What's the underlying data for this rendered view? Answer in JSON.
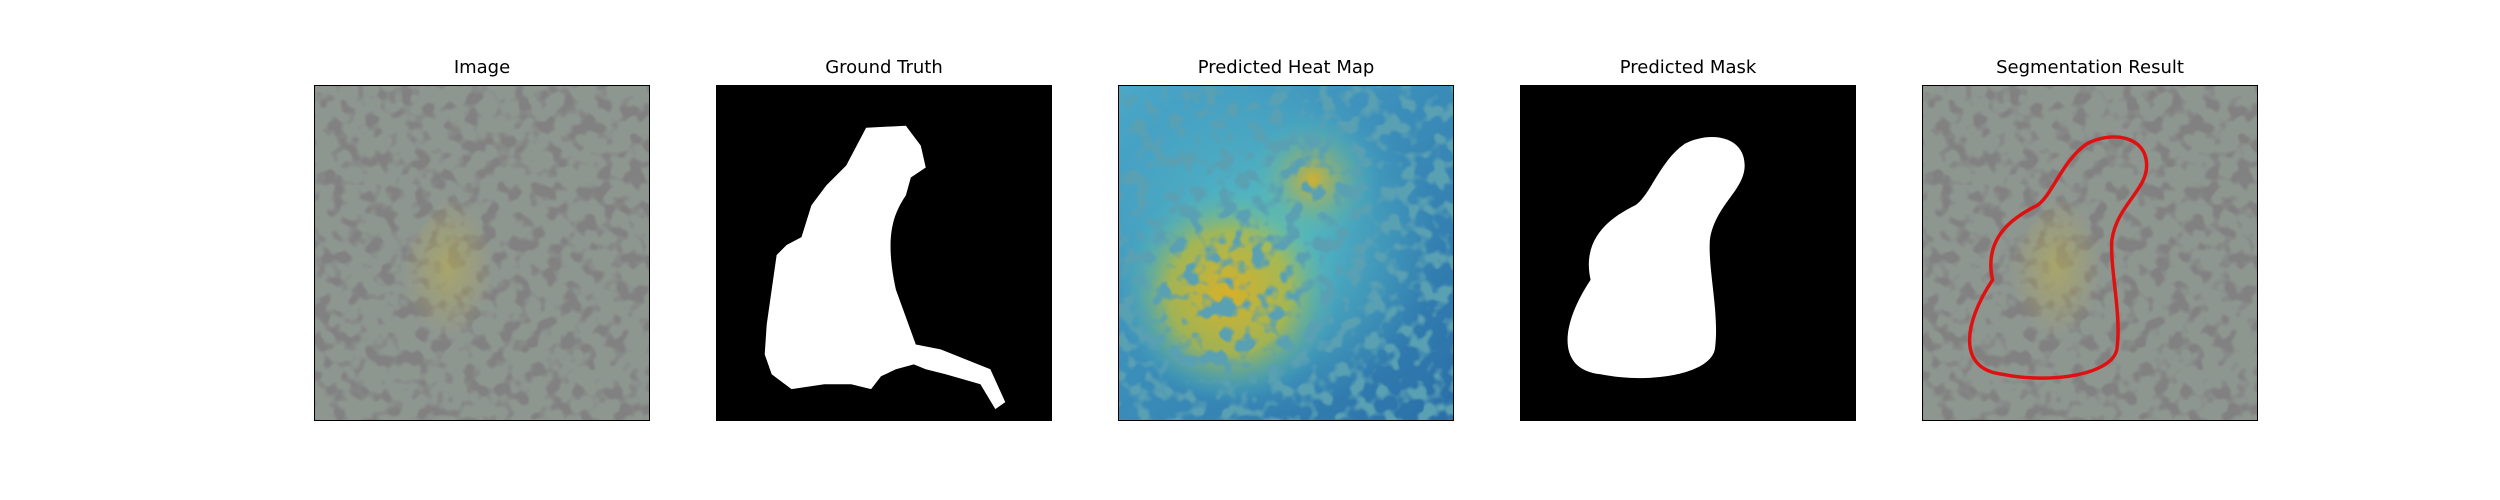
{
  "figure": {
    "panels": [
      {
        "id": "image",
        "title": "Image"
      },
      {
        "id": "ground-truth",
        "title": "Ground Truth"
      },
      {
        "id": "heatmap",
        "title": "Predicted Heat Map"
      },
      {
        "id": "pred-mask",
        "title": "Predicted Mask"
      },
      {
        "id": "seg-result",
        "title": "Segmentation Result"
      }
    ],
    "colors": {
      "background": "#ffffff",
      "mask_fg": "#ffffff",
      "mask_bg": "#000000",
      "contour": "#e01010",
      "heat_low": "#2a7fb0",
      "heat_mid": "#3fb8c4",
      "heat_high": "#c8b030"
    }
  }
}
